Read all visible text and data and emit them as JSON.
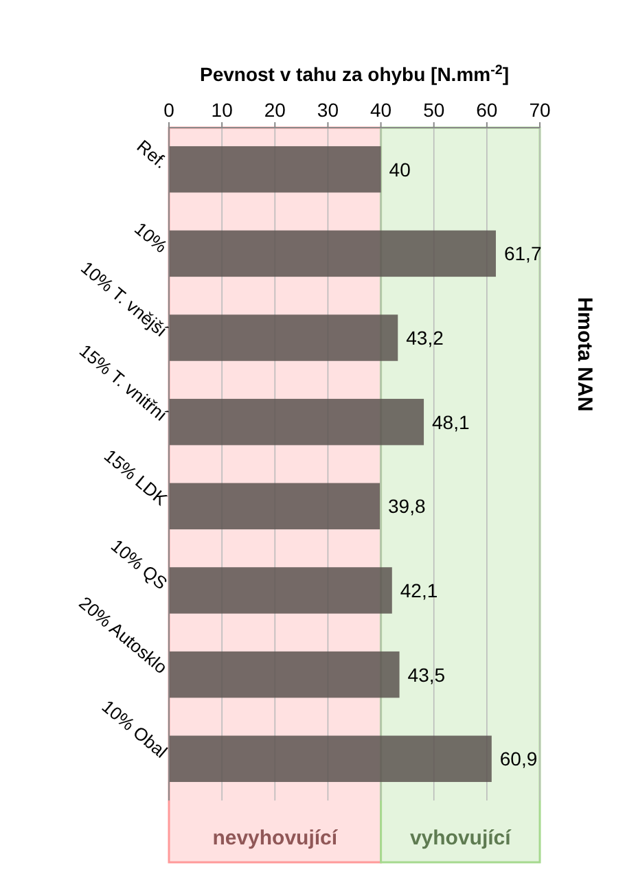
{
  "chart_data": {
    "type": "bar",
    "orientation": "horizontal",
    "title": "Hmota NAN",
    "xlabel": "Pevnost v tahu za ohybu [N.mm$^{-2}$]",
    "categories": [
      "Ref.",
      "10%",
      "10% T. vnější",
      "15% T. vnitřní",
      "15% LDK",
      "10% QS",
      "20% Autosklo",
      "10% Obal"
    ],
    "values": [
      40,
      61.7,
      43.2,
      48.1,
      39.8,
      42.1,
      43.5,
      60.9
    ],
    "value_labels": [
      "40",
      "61,7",
      "43,2",
      "48,1",
      "39,8",
      "42,1",
      "43,5",
      "60,9"
    ],
    "color": "#5c5350",
    "xlim": [
      0,
      70
    ],
    "xticks": [
      0,
      10,
      20,
      30,
      40,
      50,
      60,
      70
    ],
    "grid": true,
    "bands": [
      {
        "axis": "x",
        "from": 0,
        "to": 40,
        "label": "nevyhovující",
        "color": "#ff9a9a"
      },
      {
        "axis": "x",
        "from": 40,
        "to": 70,
        "label": "vyhovující",
        "color": "#a6d98f"
      }
    ]
  }
}
